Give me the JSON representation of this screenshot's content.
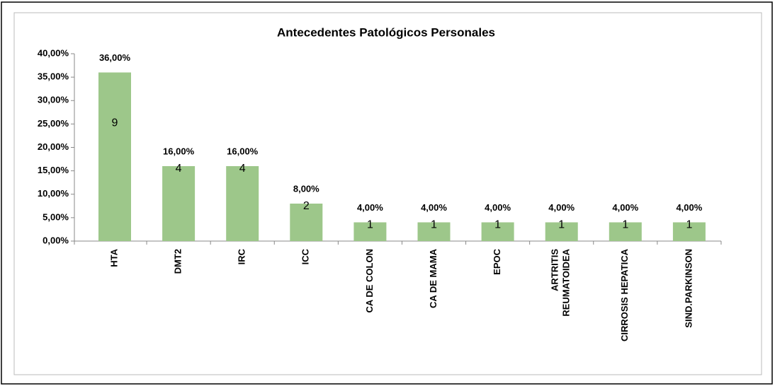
{
  "chart_data": {
    "type": "bar",
    "title": "Antecedentes Patológicos Personales",
    "categories": [
      "HTA",
      "DMT2",
      "IRC",
      "ICC",
      "CA DE COLON",
      "CA DE MAMA",
      "EPOC",
      "ARTRITIS REUMATOIDEA",
      "CIRROSIS HEPATICA",
      "SIND.PARKINSON"
    ],
    "values": [
      36,
      16,
      16,
      8,
      4,
      4,
      4,
      4,
      4,
      4
    ],
    "value_labels": [
      "36,00%",
      "16,00%",
      "16,00%",
      "8,00%",
      "4,00%",
      "4,00%",
      "4,00%",
      "4,00%",
      "4,00%",
      "4,00%"
    ],
    "counts": [
      9,
      4,
      4,
      2,
      1,
      1,
      1,
      1,
      1,
      1
    ],
    "color": "#9dc78a",
    "ylim": [
      0,
      40
    ],
    "yticks": [
      {
        "value": 0,
        "label": "0,00%"
      },
      {
        "value": 5,
        "label": "5,00%"
      },
      {
        "value": 10,
        "label": "10,00%"
      },
      {
        "value": 15,
        "label": "15,00%"
      },
      {
        "value": 20,
        "label": "20,00%"
      },
      {
        "value": 25,
        "label": "25,00%"
      },
      {
        "value": 30,
        "label": "30,00%"
      },
      {
        "value": 35,
        "label": "35,00%"
      },
      {
        "value": 40,
        "label": "40,00%"
      }
    ],
    "grid": false
  }
}
